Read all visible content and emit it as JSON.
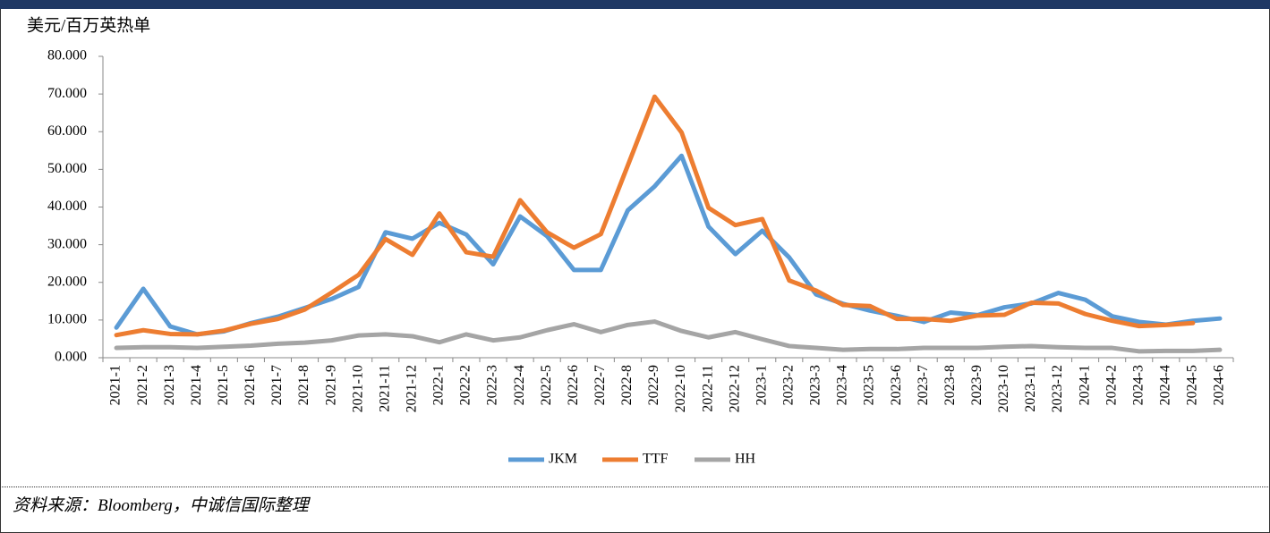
{
  "chart_data": {
    "type": "line",
    "y_label": "美元/百万英热单",
    "categories": [
      "2021-1",
      "2021-2",
      "2021-3",
      "2021-4",
      "2021-5",
      "2021-6",
      "2021-7",
      "2021-8",
      "2021-9",
      "2021-10",
      "2021-11",
      "2021-12",
      "2022-1",
      "2022-2",
      "2022-3",
      "2022-4",
      "2022-5",
      "2022-6",
      "2022-7",
      "2022-8",
      "2022-9",
      "2022-10",
      "2022-11",
      "2022-12",
      "2023-1",
      "2023-2",
      "2023-3",
      "2023-4",
      "2023-5",
      "2023-6",
      "2023-7",
      "2023-8",
      "2023-9",
      "2023-10",
      "2023-11",
      "2023-12",
      "2024-1",
      "2024-2",
      "2024-3",
      "2024-4",
      "2024-5",
      "2024-6"
    ],
    "series": [
      {
        "name": "JKM",
        "color": "#5b9bd5",
        "values": [
          8,
          18.3,
          8.3,
          6.2,
          7,
          9.2,
          10.9,
          13.2,
          15.6,
          18.8,
          33.3,
          31.6,
          35.8,
          32.7,
          24.8,
          37.5,
          32.3,
          23.3,
          23.3,
          39.1,
          45.5,
          53.6,
          34.8,
          27.5,
          33.7,
          26.6,
          16.8,
          14.3,
          12.5,
          11.1,
          9.5,
          12,
          11.3,
          13.4,
          14.4,
          17.2,
          15.4,
          11,
          9.5,
          8.8,
          9.8,
          10.4
        ]
      },
      {
        "name": "TTF",
        "color": "#ed7d31",
        "values": [
          6,
          7.3,
          6.3,
          6.2,
          7.2,
          9,
          10.3,
          12.8,
          17.3,
          22,
          31.5,
          27.3,
          38.3,
          28,
          26.8,
          41.8,
          33.3,
          29.2,
          32.8,
          51,
          69.3,
          59.8,
          39.8,
          35.2,
          36.8,
          20.5,
          17.8,
          14,
          13.7,
          10.3,
          10.3,
          9.8,
          11.2,
          11.4,
          14.6,
          14.4,
          11.6,
          9.8,
          8.4,
          8.7,
          9.2,
          null
        ]
      },
      {
        "name": "HH",
        "color": "#a5a5a5",
        "values": [
          2.6,
          2.8,
          2.8,
          2.6,
          2.9,
          3.2,
          3.7,
          4,
          4.6,
          5.9,
          6.2,
          5.7,
          4.1,
          6.2,
          4.6,
          5.4,
          7.3,
          8.9,
          6.8,
          8.7,
          9.6,
          7.1,
          5.4,
          6.8,
          4.9,
          3.1,
          2.6,
          2.1,
          2.3,
          2.3,
          2.6,
          2.6,
          2.6,
          2.9,
          3.1,
          2.8,
          2.6,
          2.6,
          1.7,
          1.8,
          1.8,
          2.1
        ]
      }
    ],
    "ylim": [
      0,
      80
    ],
    "yticks": [
      {
        "value": 0,
        "label": "0.000"
      },
      {
        "value": 10,
        "label": "10.000"
      },
      {
        "value": 20,
        "label": "20.000"
      },
      {
        "value": 30,
        "label": "30.000"
      },
      {
        "value": 40,
        "label": "40.000"
      },
      {
        "value": 50,
        "label": "50.000"
      },
      {
        "value": 60,
        "label": "60.000"
      },
      {
        "value": 70,
        "label": "70.000"
      },
      {
        "value": 80,
        "label": "80.000"
      }
    ],
    "legend": "bottom"
  },
  "footer": {
    "source": "资料来源：Bloomberg，中诚信国际整理"
  }
}
